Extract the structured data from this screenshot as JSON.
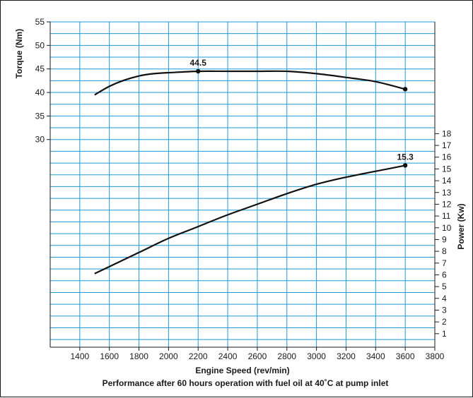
{
  "chart_data": {
    "type": "line",
    "xlabel": "Engine Speed (rev/min)",
    "caption": "Performance after 60 hours operation with fuel oil at 40˚C at pump inlet",
    "x_ticks": [
      "1400",
      "1600",
      "1800",
      "2000",
      "2200",
      "2400",
      "2600",
      "2800",
      "3000",
      "3200",
      "3400",
      "3600",
      "3800"
    ],
    "xlim": [
      1200,
      3800
    ],
    "torque_axis": {
      "label": "Torque (Nm)",
      "ticks": [
        "30",
        "35",
        "40",
        "45",
        "50",
        "55"
      ],
      "ylim": [
        25,
        55
      ]
    },
    "power_axis": {
      "label": "Power (Kw)",
      "ticks": [
        "1",
        "2",
        "3",
        "4",
        "5",
        "6",
        "7",
        "8",
        "9",
        "10",
        "11",
        "12",
        "13",
        "14",
        "15",
        "16",
        "17",
        "18"
      ],
      "ylim": [
        0,
        19
      ]
    },
    "series": [
      {
        "axis": "torque",
        "x": [
          1500,
          1600,
          1700,
          1800,
          1900,
          2000,
          2200,
          2400,
          2600,
          2800,
          3000,
          3200,
          3400,
          3600
        ],
        "y": [
          39.5,
          41.3,
          42.6,
          43.5,
          44.0,
          44.2,
          44.5,
          44.5,
          44.5,
          44.5,
          44.0,
          43.2,
          42.3,
          40.7
        ],
        "markers": [
          {
            "x": 2200,
            "y": 44.5,
            "label": "44.5"
          },
          {
            "x": 3600,
            "y": 40.7,
            "label": ""
          }
        ]
      },
      {
        "axis": "power",
        "x": [
          1500,
          1800,
          2000,
          2200,
          2400,
          2600,
          2800,
          3000,
          3200,
          3400,
          3600
        ],
        "y": [
          6.1,
          7.9,
          9.1,
          10.1,
          11.1,
          12.0,
          12.9,
          13.7,
          14.3,
          14.8,
          15.3
        ],
        "markers": [
          {
            "x": 3600,
            "y": 15.3,
            "label": "15.3"
          }
        ]
      }
    ]
  }
}
